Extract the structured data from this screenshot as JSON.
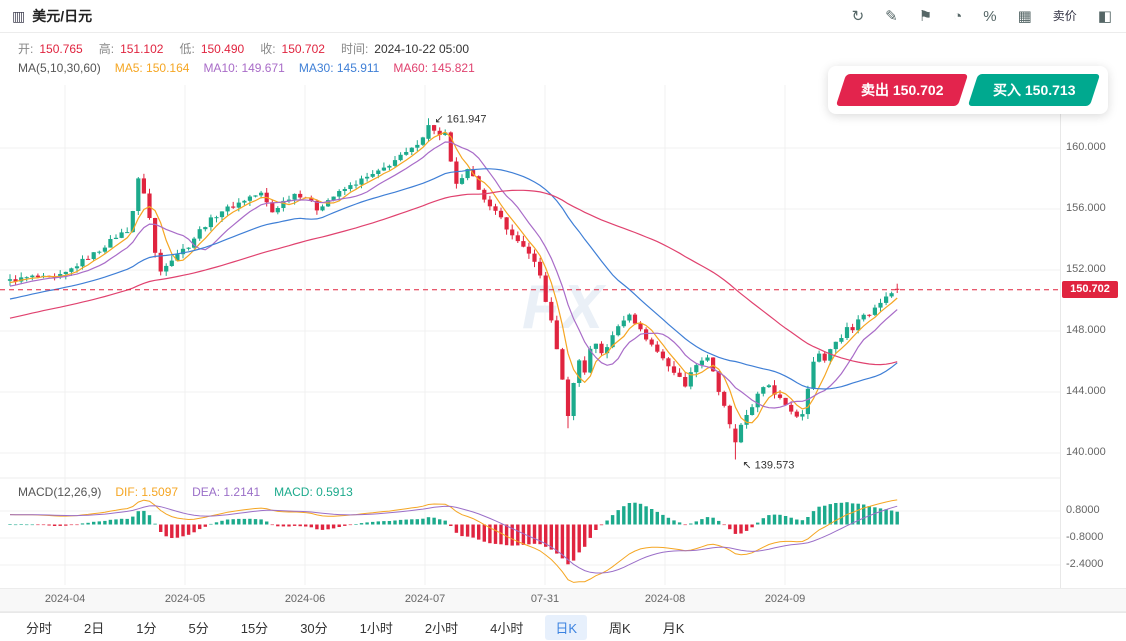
{
  "header": {
    "title": "美元/日元",
    "icons": [
      {
        "name": "refresh-icon",
        "glyph": "↻"
      },
      {
        "name": "drawing-tools-icon",
        "glyph": "✎"
      },
      {
        "name": "flag-icon",
        "glyph": "⚑"
      },
      {
        "name": "indicator-icon",
        "glyph": "◔"
      },
      {
        "name": "percent-icon",
        "glyph": "%"
      },
      {
        "name": "layout-grid-icon",
        "glyph": "▦"
      },
      {
        "name": "sell-price-toggle",
        "glyph": "卖价",
        "text": true
      },
      {
        "name": "panel-toggle-icon",
        "glyph": "◧"
      }
    ]
  },
  "ohlc": {
    "open_label": "开:",
    "open": "150.765",
    "high_label": "高:",
    "high": "151.102",
    "low_label": "低:",
    "low": "150.490",
    "close_label": "收:",
    "close": "150.702",
    "time_label": "时间:",
    "time": "2024-10-22 05:00"
  },
  "ma": {
    "group_label": "MA(5,10,30,60)",
    "items": [
      {
        "label": "MA5: 150.164",
        "color": "#f5a623"
      },
      {
        "label": "MA10: 149.671",
        "color": "#a96cc8"
      },
      {
        "label": "MA30: 145.911",
        "color": "#3f7fd6"
      },
      {
        "label": "MA60: 145.821",
        "color": "#e0426f"
      }
    ]
  },
  "macd_legend": {
    "group_label": "MACD(12,26,9)",
    "items": [
      {
        "label": "DIF: 1.5097",
        "color": "#f5a623"
      },
      {
        "label": "DEA: 1.2141",
        "color": "#9b6fc8"
      },
      {
        "label": "MACD: 0.5913",
        "color": "#1caa8c"
      }
    ]
  },
  "trade": {
    "sell_label": "卖出 150.702",
    "buy_label": "买入 150.713"
  },
  "watermark": "FX",
  "colors": {
    "up": "#1caa8c",
    "down": "#e0243f",
    "ma5": "#f5a623",
    "ma10": "#a96cc8",
    "ma30": "#3f7fd6",
    "ma60": "#e0426f",
    "dif": "#f5a623",
    "dea": "#9b6fc8",
    "accent_blue": "#3b82e0"
  },
  "tabbar": {
    "items": [
      "分时",
      "2日",
      "1分",
      "5分",
      "15分",
      "30分",
      "1小时",
      "2小时",
      "4小时",
      "日K",
      "周K",
      "月K"
    ],
    "active": "日K"
  },
  "chart_data": {
    "type": "candlestick",
    "symbol": "USD/JPY 美元/日元",
    "timeframe": "日K (daily)",
    "x_ticks": [
      "2024-04",
      "2024-05",
      "2024-06",
      "2024-07",
      "07-31",
      "2024-08",
      "2024-09"
    ],
    "price_ticks": [
      "160.000",
      "156.000",
      "152.000",
      "148.000",
      "144.000",
      "140.000"
    ],
    "macd_ticks": [
      "0.8000",
      "-0.8000",
      "-2.4000"
    ],
    "ylim": [
      138.5,
      164.0
    ],
    "last_price": 150.702,
    "last_price_label": "150.702",
    "last_candle": {
      "open": 150.765,
      "high": 151.102,
      "low": 150.49,
      "close": 150.702,
      "time": "2024-10-22 05:00"
    },
    "ma_values": {
      "ma5": 150.164,
      "ma10": 149.671,
      "ma30": 145.911,
      "ma60": 145.821
    },
    "macd_values": {
      "dif": 1.5097,
      "dea": 1.2141,
      "macd": 0.5913
    },
    "annotations": {
      "peak": {
        "arrow": "↙",
        "value": "161.947"
      },
      "low": {
        "arrow": "↖",
        "value": "139.573"
      }
    },
    "candle_count": 160,
    "prehistory": {
      "count": 60,
      "start_price": 146.3,
      "end_price": 151.2
    },
    "close_anchors": [
      [
        0,
        151.3
      ],
      [
        4,
        151.55
      ],
      [
        8,
        151.4
      ],
      [
        10,
        151.8
      ],
      [
        13,
        152.6
      ],
      [
        16,
        153.3
      ],
      [
        19,
        154.2
      ],
      [
        21,
        154.6
      ],
      [
        22,
        155.9
      ],
      [
        23,
        157.9
      ],
      [
        24,
        157.1
      ],
      [
        25,
        155.4
      ],
      [
        26,
        153.1
      ],
      [
        27,
        151.9
      ],
      [
        28,
        152.4
      ],
      [
        30,
        153.1
      ],
      [
        32,
        153.6
      ],
      [
        34,
        154.6
      ],
      [
        36,
        155.3
      ],
      [
        38,
        155.9
      ],
      [
        40,
        156.2
      ],
      [
        43,
        156.8
      ],
      [
        45,
        157.0
      ],
      [
        47,
        155.8
      ],
      [
        49,
        156.5
      ],
      [
        51,
        157.0
      ],
      [
        53,
        156.8
      ],
      [
        55,
        156.0
      ],
      [
        57,
        156.6
      ],
      [
        60,
        157.3
      ],
      [
        63,
        157.9
      ],
      [
        66,
        158.4
      ],
      [
        69,
        159.2
      ],
      [
        72,
        159.9
      ],
      [
        74,
        160.8
      ],
      [
        75,
        161.4
      ],
      [
        76,
        161.2
      ],
      [
        77,
        160.8
      ],
      [
        78,
        160.9
      ],
      [
        79,
        159.0
      ],
      [
        80,
        157.7
      ],
      [
        81,
        157.9
      ],
      [
        82,
        158.5
      ],
      [
        83,
        158.0
      ],
      [
        84,
        157.4
      ],
      [
        86,
        156.1
      ],
      [
        88,
        155.4
      ],
      [
        90,
        154.2
      ],
      [
        92,
        153.6
      ],
      [
        94,
        152.4
      ],
      [
        95,
        151.6
      ],
      [
        96,
        150.0
      ],
      [
        97,
        148.6
      ],
      [
        98,
        146.8
      ],
      [
        99,
        144.9
      ],
      [
        100,
        142.3
      ],
      [
        101,
        144.7
      ],
      [
        102,
        146.0
      ],
      [
        103,
        145.4
      ],
      [
        104,
        146.8
      ],
      [
        105,
        147.2
      ],
      [
        106,
        146.6
      ],
      [
        107,
        147.0
      ],
      [
        109,
        148.3
      ],
      [
        111,
        149.2
      ],
      [
        112,
        148.6
      ],
      [
        113,
        148.0
      ],
      [
        115,
        147.1
      ],
      [
        117,
        146.2
      ],
      [
        119,
        145.3
      ],
      [
        121,
        144.5
      ],
      [
        123,
        145.9
      ],
      [
        125,
        146.3
      ],
      [
        126,
        145.4
      ],
      [
        127,
        143.9
      ],
      [
        128,
        143.0
      ],
      [
        129,
        141.9
      ],
      [
        130,
        140.6
      ],
      [
        131,
        141.7
      ],
      [
        132,
        142.5
      ],
      [
        133,
        143.1
      ],
      [
        134,
        143.8
      ],
      [
        135,
        144.2
      ],
      [
        136,
        144.5
      ],
      [
        137,
        143.9
      ],
      [
        138,
        143.7
      ],
      [
        139,
        143.3
      ],
      [
        140,
        142.7
      ],
      [
        141,
        142.3
      ],
      [
        142,
        142.6
      ],
      [
        143,
        144.2
      ],
      [
        144,
        146.1
      ],
      [
        145,
        146.4
      ],
      [
        146,
        146.2
      ],
      [
        147,
        146.8
      ],
      [
        148,
        147.3
      ],
      [
        149,
        147.6
      ],
      [
        150,
        148.3
      ],
      [
        151,
        148.1
      ],
      [
        152,
        148.8
      ],
      [
        153,
        149.2
      ],
      [
        154,
        149.0
      ],
      [
        155,
        149.6
      ],
      [
        156,
        149.9
      ],
      [
        157,
        150.2
      ],
      [
        158,
        150.5
      ],
      [
        159,
        150.702
      ]
    ],
    "special": {
      "peak": {
        "index": 75,
        "open": 160.6,
        "close": 161.5,
        "high": 161.947
      },
      "low": {
        "index": 130,
        "open": 141.6,
        "close": 140.7,
        "low": 139.573
      },
      "aug_low": {
        "index": 100,
        "low": 141.62
      },
      "last": {
        "open": 150.765,
        "high": 151.102,
        "low": 150.49,
        "close": 150.702
      }
    }
  }
}
